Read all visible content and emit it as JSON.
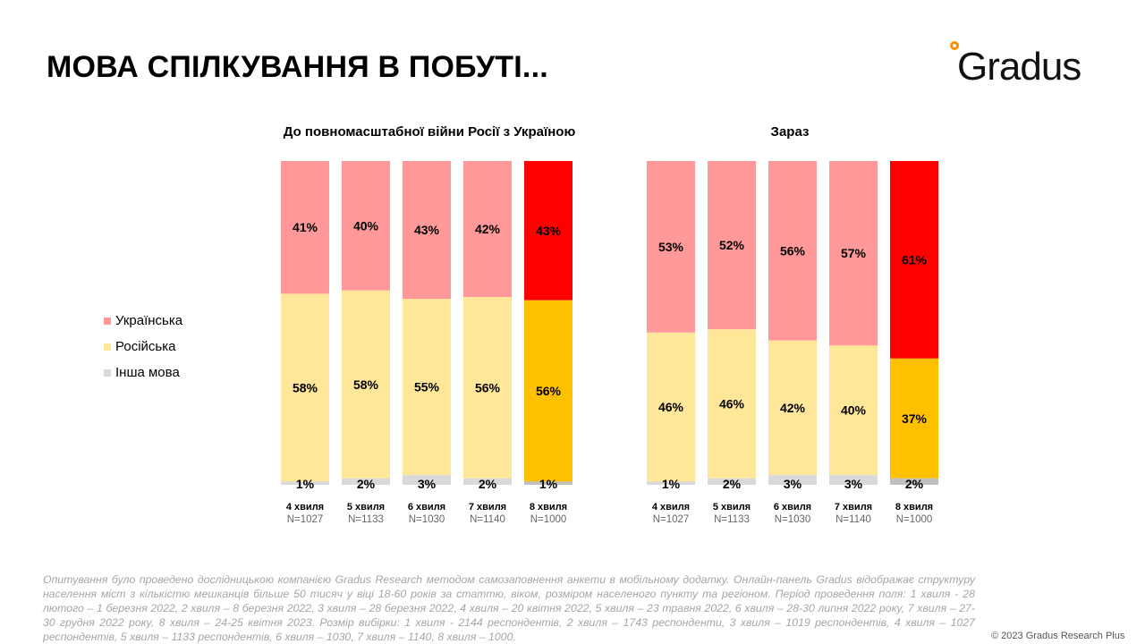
{
  "title": "МОВА СПІЛКУВАННЯ В ПОБУТІ...",
  "logo": "Gradus",
  "legend": [
    {
      "label": "Українська",
      "color": "#ff9999"
    },
    {
      "label": "Російська",
      "color": "#ffe699"
    },
    {
      "label": "Інша мова",
      "color": "#d9d9d9"
    }
  ],
  "chart_data": [
    {
      "type": "bar",
      "stacked": true,
      "title": "До повномасштабної війни Росії з Україною",
      "categories": [
        "4 хвиля",
        "5 хвиля",
        "6 хвиля",
        "7 хвиля",
        "8 хвиля"
      ],
      "sample": [
        "N=1027",
        "N=1133",
        "N=1030",
        "N=1140",
        "N=1000"
      ],
      "series": [
        {
          "name": "Українська",
          "values": [
            41,
            40,
            43,
            42,
            43
          ]
        },
        {
          "name": "Російська",
          "values": [
            58,
            58,
            55,
            56,
            56
          ]
        },
        {
          "name": "Інша мова",
          "values": [
            1,
            2,
            3,
            2,
            1
          ]
        }
      ]
    },
    {
      "type": "bar",
      "stacked": true,
      "title": "Зараз",
      "categories": [
        "4 хвиля",
        "5 хвиля",
        "6 хвиля",
        "7 хвиля",
        "8 хвиля"
      ],
      "sample": [
        "N=1027",
        "N=1133",
        "N=1030",
        "N=1140",
        "N=1000"
      ],
      "series": [
        {
          "name": "Українська",
          "values": [
            53,
            52,
            56,
            57,
            61
          ]
        },
        {
          "name": "Російська",
          "values": [
            46,
            46,
            42,
            40,
            37
          ]
        },
        {
          "name": "Інша мова",
          "values": [
            1,
            2,
            3,
            3,
            2
          ]
        }
      ]
    }
  ],
  "colors": {
    "normal": [
      "#ff9999",
      "#ffe699",
      "#d9d9d9"
    ],
    "highlight": [
      "#ff0000",
      "#ffc000",
      "#bfbfbf"
    ]
  },
  "footnote": "Опитування було проведено дослідницькою компанією Gradus Research методом самозаповнення анкети в мобільному додатку. Онлайн-панель Gradus відображає структуру населення міст з кількістю мешканців більше 50 тисяч у віці 18-60 років за статтю, віком, розміром населеного пункту та регіоном. Період проведення поля: 1 хвиля - 28 лютого – 1 березня 2022, 2 хвиля – 8 березня 2022, 3 хвиля – 28 березня 2022, 4 хвиля – 20 квітня 2022, 5 хвиля – 23 травня 2022, 6 хвиля – 28-30 липня 2022 року, 7 хвиля – 27-30 грудня 2022 року, 8 хвиля – 24-25 квітня 2023. Розмір вибірки: 1 хвиля - 2144 респондентів, 2 хвиля – 1743 респонденти, 3 хвиля – 1019 респондентів, 4 хвиля – 1027 респондентів, 5 хвиля – 1133 респондентів, 6 хвиля – 1030, 7 хвиля – 1140, 8 хвиля – 1000.",
  "copyright": "© 2023 Gradus Research Plus"
}
